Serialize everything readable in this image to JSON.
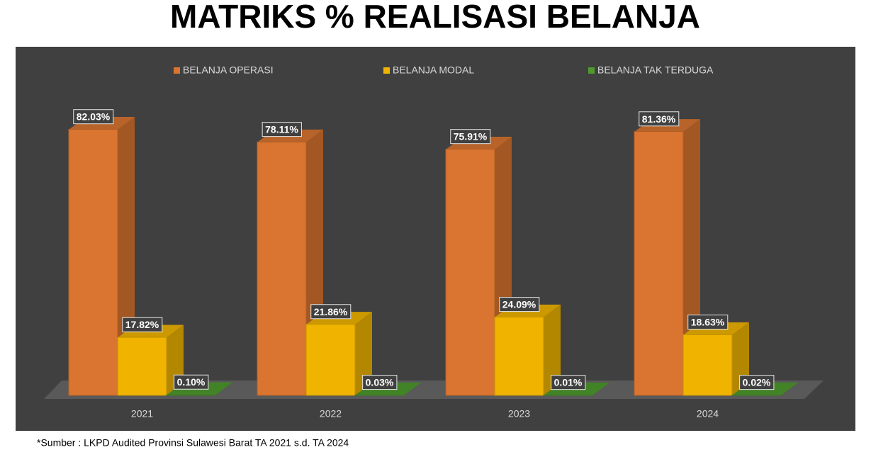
{
  "chart_data": {
    "type": "bar3d",
    "title": "MATRIKS % REALISASI BELANJA",
    "categories": [
      "2021",
      "2022",
      "2023",
      "2024"
    ],
    "series": [
      {
        "name": "BELANJA OPERASI",
        "color": "#d97530",
        "values": [
          82.03,
          78.11,
          75.91,
          81.36
        ],
        "value_labels": [
          "82.03%",
          "78.11%",
          "75.91%",
          "81.36%"
        ]
      },
      {
        "name": "BELANJA MODAL",
        "color": "#f0b400",
        "values": [
          17.82,
          21.86,
          24.09,
          18.63
        ],
        "value_labels": [
          "17.82%",
          "21.86%",
          "24.09%",
          "18.63%"
        ]
      },
      {
        "name": "BELANJA TAK TERDUGA",
        "color": "#4e9a2e",
        "values": [
          0.1,
          0.03,
          0.01,
          0.02
        ],
        "value_labels": [
          "0.10%",
          "0.03%",
          "0.01%",
          "0.02%"
        ]
      }
    ],
    "source": "*Sumber : LKPD Audited Provinsi Sulawesi Barat TA 2021 s.d. TA 2024"
  }
}
